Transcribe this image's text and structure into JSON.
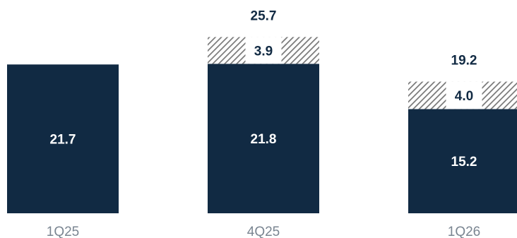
{
  "colors": {
    "base": "#112a43",
    "text_dark": "#112a43",
    "text_light": "#ffffff",
    "axis_text": "#7a8591",
    "hatch": "#777777",
    "background": "#ffffff"
  },
  "chart_data": {
    "type": "bar",
    "stacked": true,
    "categories": [
      "1Q25",
      "4Q25",
      "1Q26"
    ],
    "series": [
      {
        "values": [
          21.7,
          21.8,
          15.2
        ],
        "color": "#112a43",
        "pattern": "solid"
      },
      {
        "values": [
          null,
          3.9,
          4.0
        ],
        "pattern": "diagonal-hatch"
      }
    ],
    "totals": [
      null,
      "25.7",
      "19.2"
    ],
    "labels": {
      "base": [
        "21.7",
        "21.8",
        "15.2"
      ],
      "top": [
        null,
        "3.9",
        "4.0"
      ]
    },
    "grid": false,
    "legend": "none"
  }
}
